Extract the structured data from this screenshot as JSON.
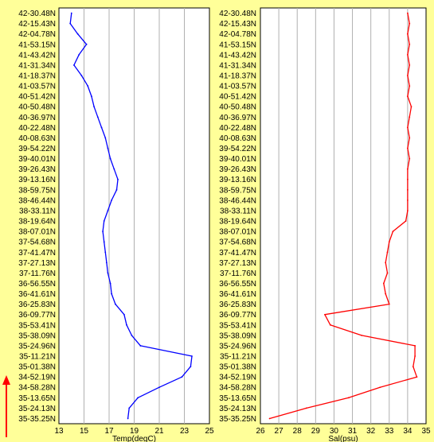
{
  "chart_data": [
    {
      "type": "line",
      "xlabel": "Temp(degC)",
      "xlim": [
        13,
        25
      ],
      "xticks": [
        13,
        15,
        17,
        19,
        21,
        23,
        25
      ],
      "ylabel": "",
      "y_is_latitude": true,
      "y_tick_labels": [
        "42-30.48N",
        "42-15.43N",
        "42-04.78N",
        "41-53.15N",
        "41-43.42N",
        "41-31.34N",
        "41-18.37N",
        "41-03.57N",
        "40-51.42N",
        "40-50.48N",
        "40-36.97N",
        "40-22.48N",
        "40-08.63N",
        "39-54.22N",
        "39-40.01N",
        "39-26.43N",
        "39-13.16N",
        "38-59.75N",
        "38-46.44N",
        "38-33.11N",
        "38-19.64N",
        "38-07.01N",
        "37-54.68N",
        "37-41.47N",
        "37-27.13N",
        "37-11.76N",
        "36-56.55N",
        "36-41.61N",
        "36-25.83N",
        "36-09.77N",
        "35-53.41N",
        "35-38.09N",
        "35-24.96N",
        "35-11.21N",
        "35-01.38N",
        "34-52.19N",
        "34-58.28N",
        "35-13.65N",
        "35-24.13N",
        "35-35.25N"
      ],
      "grid": true,
      "color": "#0000ff",
      "series": [
        {
          "values": [
            14.0,
            13.9,
            14.5,
            15.2,
            14.6,
            14.2,
            14.8,
            15.3,
            15.6,
            15.8,
            16.1,
            16.4,
            16.7,
            16.9,
            17.1,
            17.4,
            17.7,
            17.6,
            17.2,
            16.9,
            16.6,
            16.5,
            16.6,
            16.7,
            16.8,
            16.9,
            17.1,
            17.2,
            17.5,
            18.2,
            18.4,
            18.8,
            19.5,
            23.6,
            23.5,
            22.8,
            21.0,
            19.3,
            18.6,
            18.5
          ]
        }
      ]
    },
    {
      "type": "line",
      "xlabel": "Sal(psu)",
      "xlim": [
        26,
        35
      ],
      "xticks": [
        26,
        27,
        28,
        29,
        30,
        31,
        32,
        33,
        34,
        35
      ],
      "ylabel": "",
      "y_is_latitude": true,
      "y_tick_labels": [
        "42-30.48N",
        "42-15.43N",
        "42-04.78N",
        "41-53.15N",
        "41-43.42N",
        "41-31.34N",
        "41-18.37N",
        "41-03.57N",
        "40-51.42N",
        "40-50.48N",
        "40-36.97N",
        "40-22.48N",
        "40-08.63N",
        "39-54.22N",
        "39-40.01N",
        "39-26.43N",
        "39-13.16N",
        "38-59.75N",
        "38-46.44N",
        "38-33.11N",
        "38-19.64N",
        "38-07.01N",
        "37-54.68N",
        "37-41.47N",
        "37-27.13N",
        "37-11.76N",
        "36-56.55N",
        "36-41.61N",
        "36-25.83N",
        "36-09.77N",
        "35-53.41N",
        "35-38.09N",
        "35-24.96N",
        "35-11.21N",
        "35-01.38N",
        "34-52.19N",
        "34-58.28N",
        "35-13.65N",
        "35-24.13N",
        "35-35.25N"
      ],
      "grid": true,
      "color": "#ff0000",
      "series": [
        {
          "values": [
            34.0,
            34.1,
            34.0,
            34.1,
            34.0,
            34.1,
            34.0,
            34.1,
            34.0,
            34.2,
            34.1,
            34.0,
            34.1,
            34.0,
            34.1,
            34.0,
            34.0,
            34.0,
            34.0,
            34.0,
            33.9,
            33.2,
            33.0,
            32.9,
            32.8,
            32.9,
            32.7,
            32.8,
            33.0,
            29.5,
            29.8,
            31.5,
            34.4,
            34.4,
            34.3,
            34.5,
            32.5,
            30.8,
            28.5,
            26.5
          ]
        }
      ]
    }
  ],
  "arrow": {
    "color": "#ff0000",
    "icon": "up-arrow-icon"
  }
}
